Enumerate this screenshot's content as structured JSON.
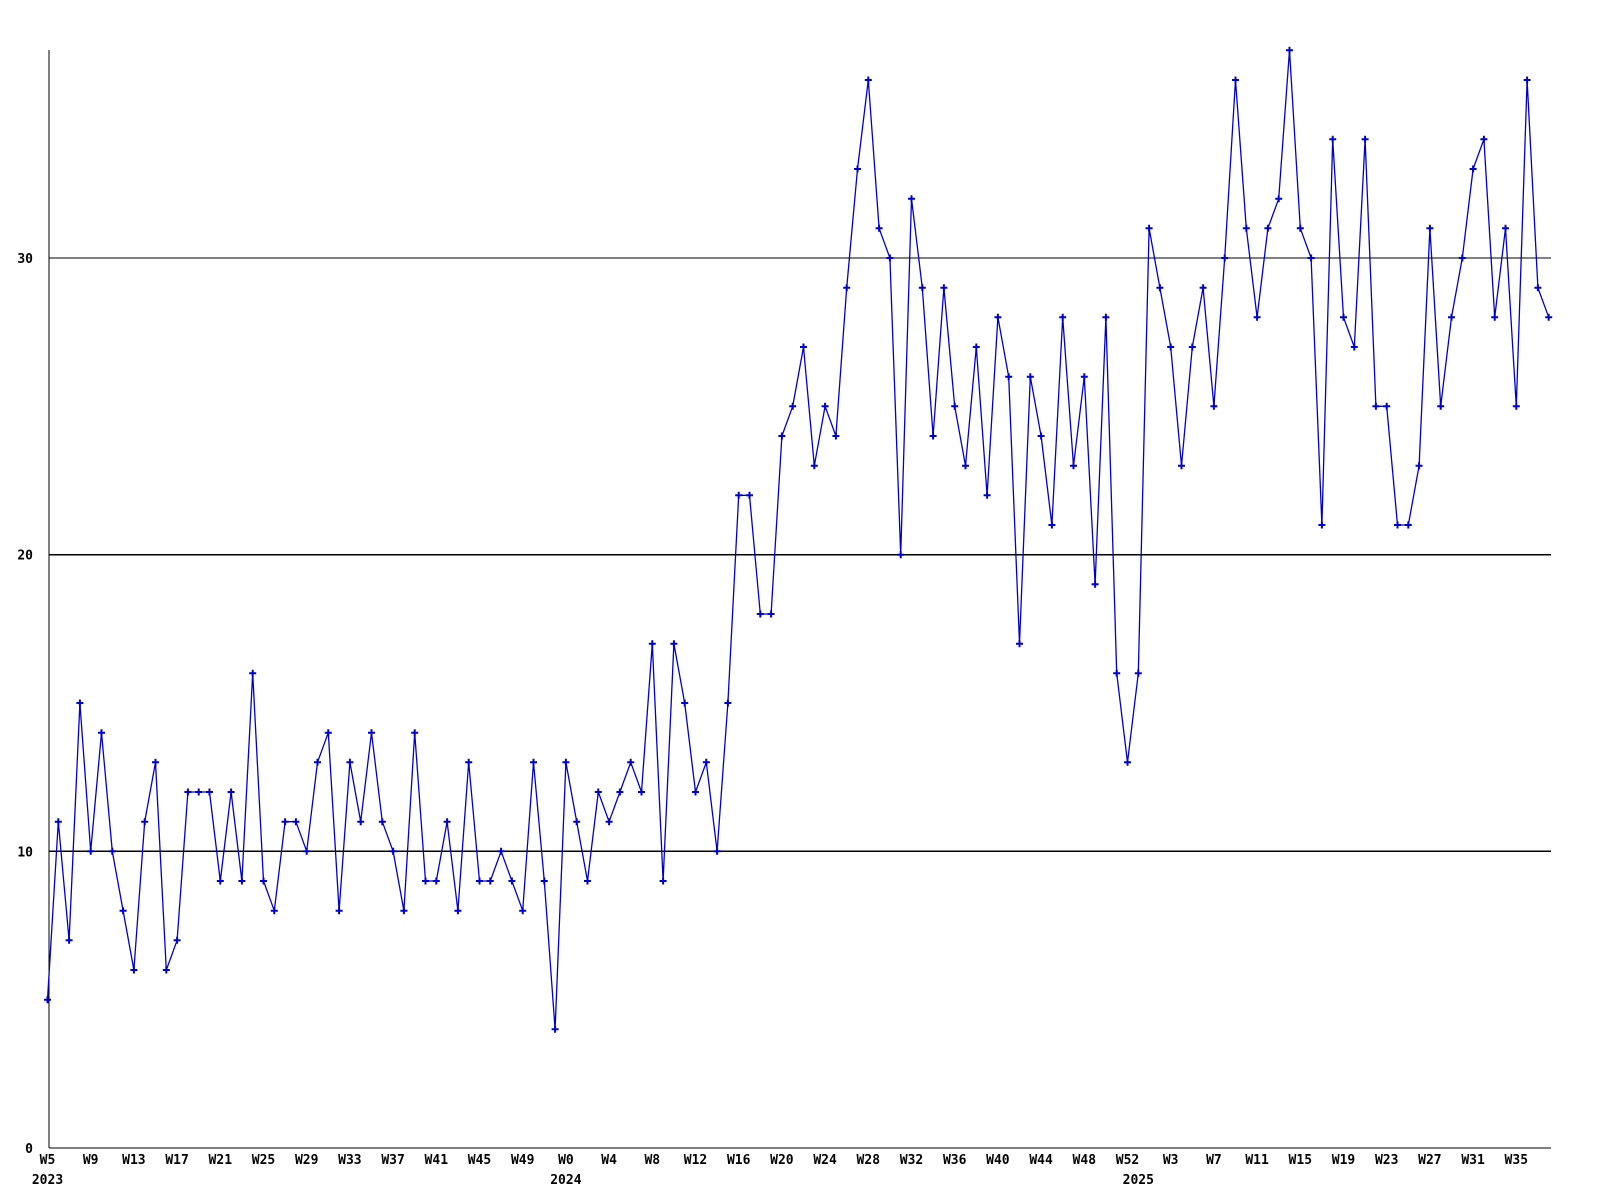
{
  "chart_data": {
    "type": "line",
    "title": "",
    "xlabel": "",
    "ylabel": "",
    "ylim": [
      0,
      37.2
    ],
    "yticks": [
      0,
      10,
      20,
      30
    ],
    "grid": true,
    "legend": false,
    "line_color": "#0000cc",
    "marker_color": "#0000cc",
    "axis_color": "#000000",
    "grid_color": "#000000",
    "background_color": "#ffffff",
    "marker": "plus",
    "groups": [
      {
        "year": "2023",
        "start_week": 5,
        "values": [
          5,
          11,
          7,
          15,
          10,
          14,
          10,
          8,
          6,
          11,
          13,
          6,
          7,
          12,
          12,
          12,
          9,
          12,
          9,
          16,
          9,
          8,
          11,
          11,
          10,
          13,
          14,
          8,
          13,
          11,
          14,
          11,
          10,
          8,
          14,
          9,
          9,
          11,
          8,
          13,
          9,
          9,
          10,
          9,
          8,
          13,
          9,
          4
        ]
      },
      {
        "year": "2024",
        "start_week": 0,
        "values": [
          13,
          11,
          9,
          12,
          11,
          12,
          13,
          12,
          17,
          9,
          17,
          15,
          12,
          13,
          10,
          15,
          22,
          22,
          18,
          18,
          24,
          25,
          27,
          23,
          25,
          24,
          29,
          33,
          36,
          31,
          30,
          20,
          32,
          29,
          24,
          29,
          25,
          23,
          27,
          22,
          28,
          26,
          17,
          26,
          24,
          21,
          28,
          23,
          26,
          19,
          28,
          16,
          13
        ]
      },
      {
        "year": "2025",
        "start_week": 0,
        "values": [
          16,
          31,
          29,
          27,
          23,
          27,
          29,
          25,
          30,
          36,
          31,
          28,
          31,
          32,
          37,
          31,
          30,
          21,
          34,
          28,
          27,
          34,
          25,
          25,
          21,
          21,
          23,
          31,
          25,
          28,
          30,
          33,
          34,
          28,
          31,
          25,
          36,
          29,
          28
        ]
      }
    ],
    "x_tick_every": 4,
    "x_tick_labels": [
      "W5",
      "W9",
      "W13",
      "W17",
      "W21",
      "W25",
      "W29",
      "W33",
      "W37",
      "W41",
      "W45",
      "W49",
      "W0",
      "W4",
      "W8",
      "W12",
      "W16",
      "W20",
      "W24",
      "W28",
      "W32",
      "W36",
      "W40",
      "W44",
      "W48",
      "W52",
      "W3",
      "W7",
      "W11",
      "W15",
      "W19",
      "W23",
      "W27",
      "W31",
      "W35"
    ],
    "year_labels": [
      {
        "text": "2023",
        "point_index": 0
      },
      {
        "text": "2024",
        "point_index": 48
      },
      {
        "text": "2025",
        "point_index": 101
      }
    ]
  }
}
